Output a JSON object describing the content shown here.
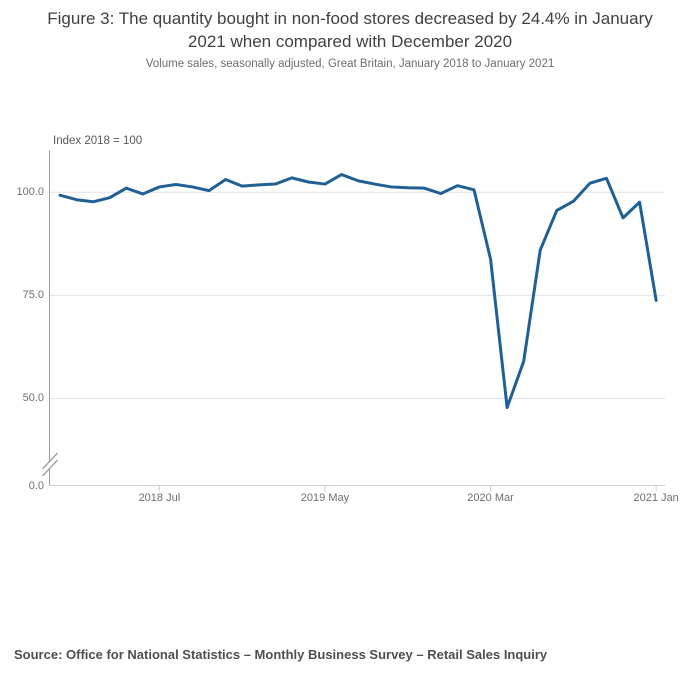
{
  "chart_data": {
    "type": "line",
    "title": "Figure 3: The quantity bought in non-food stores decreased by 24.4% in January 2021 when compared with December 2020",
    "subtitle": "Volume sales, seasonally adjusted, Great Britain, January 2018 to January 2021",
    "unit_label": "Index 2018 = 100",
    "line_color": "#206095",
    "x": [
      "2018 Jan",
      "2018 Feb",
      "2018 Mar",
      "2018 Apr",
      "2018 May",
      "2018 Jun",
      "2018 Jul",
      "2018 Aug",
      "2018 Sep",
      "2018 Oct",
      "2018 Nov",
      "2018 Dec",
      "2019 Jan",
      "2019 Feb",
      "2019 Mar",
      "2019 Apr",
      "2019 May",
      "2019 Jun",
      "2019 Jul",
      "2019 Aug",
      "2019 Sep",
      "2019 Oct",
      "2019 Nov",
      "2019 Dec",
      "2020 Jan",
      "2020 Feb",
      "2020 Mar",
      "2020 Apr",
      "2020 May",
      "2020 Jun",
      "2020 Jul",
      "2020 Aug",
      "2020 Sep",
      "2020 Oct",
      "2020 Nov",
      "2020 Dec",
      "2021 Jan"
    ],
    "series": [
      {
        "name": "Non-food stores volume sales index",
        "color": "#206095",
        "values": [
          99.3,
          98.2,
          97.7,
          98.7,
          101.0,
          99.6,
          101.3,
          101.9,
          101.3,
          100.4,
          103.1,
          101.5,
          101.8,
          102.0,
          103.5,
          102.5,
          102.0,
          104.3,
          102.8,
          102.0,
          101.3,
          101.1,
          101.0,
          99.7,
          101.6,
          100.6,
          83.8,
          47.8,
          59.0,
          86.0,
          95.6,
          97.8,
          102.2,
          103.4,
          93.8,
          97.6,
          73.8
        ]
      }
    ],
    "x_ticks": [
      {
        "label": "2018 Jul",
        "index": 6
      },
      {
        "label": "2019 May",
        "index": 16
      },
      {
        "label": "2020 Mar",
        "index": 26
      },
      {
        "label": "2021 Jan",
        "index": 36
      }
    ],
    "y_ticks": [
      {
        "label": "100.0",
        "value": 100
      },
      {
        "label": "75.0",
        "value": 75
      },
      {
        "label": "50.0",
        "value": 50
      },
      {
        "label": "0.0",
        "value": 0
      }
    ],
    "ylim": [
      0,
      110
    ],
    "axis_break": true,
    "grid": "horizontal",
    "legend": "none"
  },
  "source_note": "Source: Office for National Statistics – Monthly Business Survey – Retail Sales Inquiry"
}
